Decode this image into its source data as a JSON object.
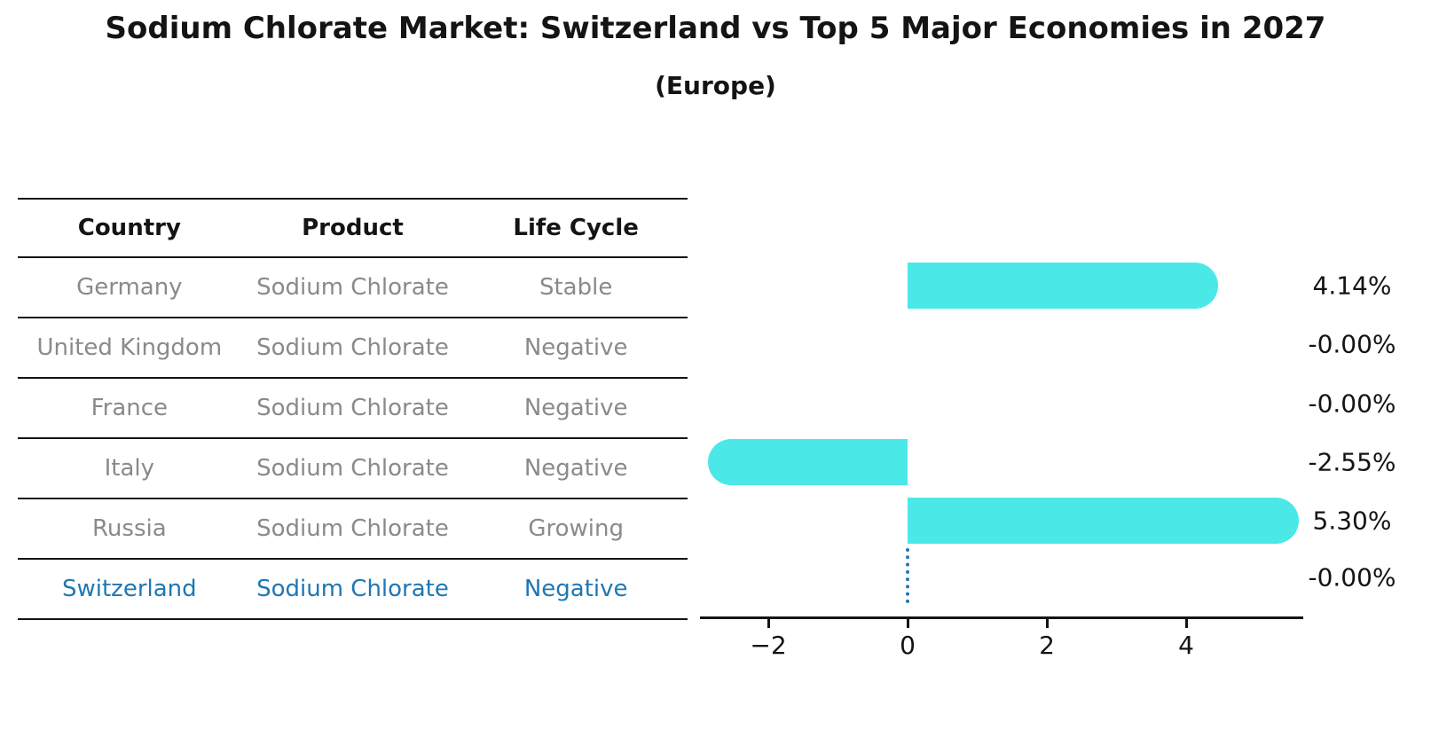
{
  "title": "Sodium Chlorate Market: Switzerland vs Top 5 Major Economies in 2027",
  "subtitle": "(Europe)",
  "table": {
    "headers": [
      "Country",
      "Product",
      "Life Cycle"
    ],
    "rows": [
      {
        "country": "Germany",
        "product": "Sodium Chlorate",
        "life_cycle": "Stable",
        "highlighted": false
      },
      {
        "country": "United Kingdom",
        "product": "Sodium Chlorate",
        "life_cycle": "Negative",
        "highlighted": false
      },
      {
        "country": "France",
        "product": "Sodium Chlorate",
        "life_cycle": "Negative",
        "highlighted": false
      },
      {
        "country": "Italy",
        "product": "Sodium Chlorate",
        "life_cycle": "Negative",
        "highlighted": false
      },
      {
        "country": "Russia",
        "product": "Sodium Chlorate",
        "life_cycle": "Growing",
        "highlighted": false
      },
      {
        "country": "Switzerland",
        "product": "Sodium Chlorate",
        "life_cycle": "Negative",
        "highlighted": true
      }
    ]
  },
  "chart_data": {
    "type": "bar",
    "orientation": "horizontal",
    "title": "Sodium Chlorate Market: Switzerland vs Top 5 Major Economies in 2027 (Europe)",
    "categories": [
      "Germany",
      "United Kingdom",
      "France",
      "Italy",
      "Russia",
      "Switzerland"
    ],
    "values": [
      4.14,
      -0.0,
      -0.0,
      -2.55,
      5.3,
      -0.0
    ],
    "value_labels": [
      "4.14%",
      "-0.00%",
      "-0.00%",
      "-2.55%",
      "5.30%",
      "-0.00%"
    ],
    "x_ticks": [
      -2,
      0,
      2,
      4
    ],
    "x_tick_labels": [
      "−2",
      "0",
      "2",
      "4"
    ],
    "xlim": [
      -2.94,
      5.69
    ],
    "xlabel": "",
    "ylabel": "",
    "grid": false,
    "legend": false,
    "highlight_category": "Switzerland",
    "highlight_marker": "dotted-line-at-zero"
  },
  "colors": {
    "bar": "#4BE8E8",
    "highlight_text": "#1F77B4",
    "highlight_line": "#1F77B4",
    "row_text": "#8A8A8A",
    "text": "#141414",
    "background": "#FFFFFF"
  }
}
